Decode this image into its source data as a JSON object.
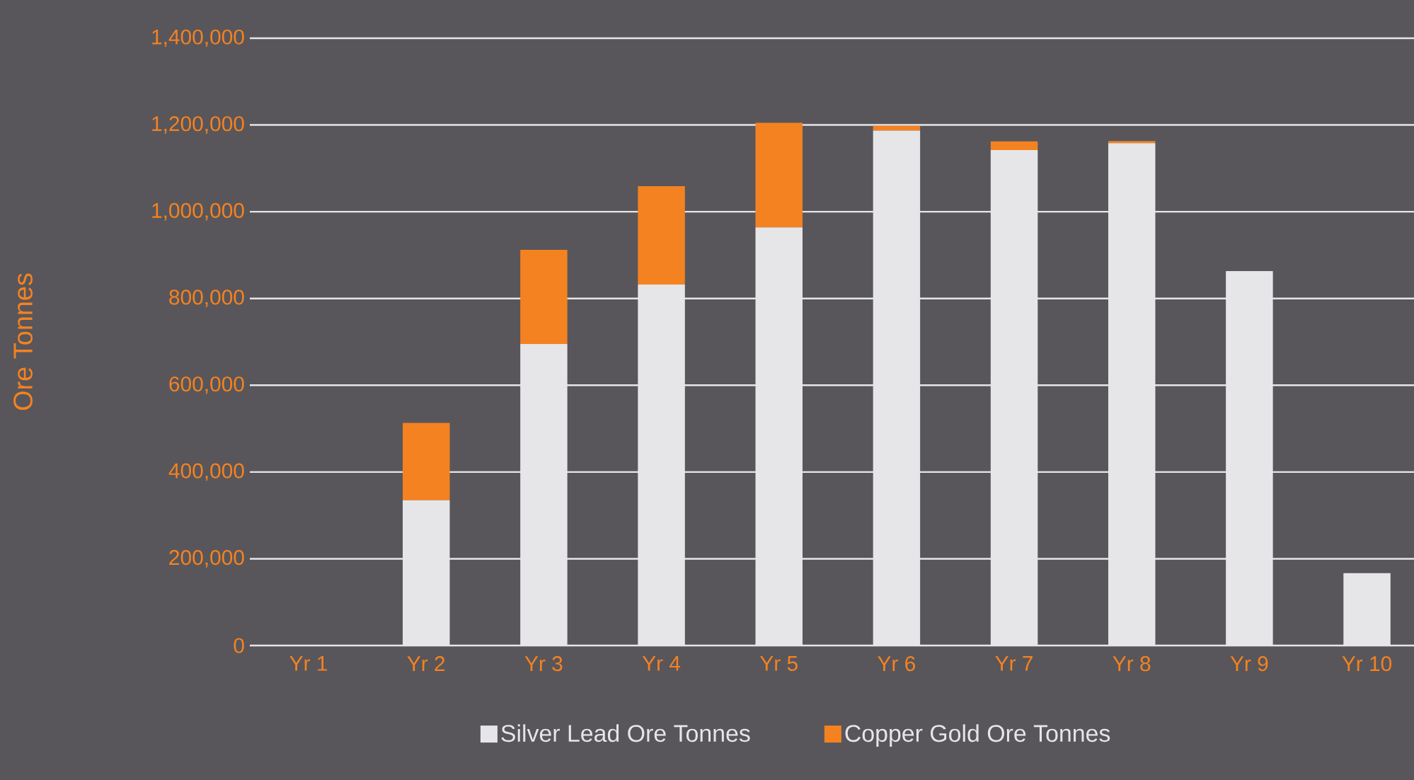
{
  "chart_data": {
    "type": "bar",
    "stacked": true,
    "ylabel": "Ore Tonnes",
    "categories": [
      "Yr 1",
      "Yr 2",
      "Yr 3",
      "Yr 4",
      "Yr 5",
      "Yr 6",
      "Yr 7",
      "Yr 8",
      "Yr 9",
      "Yr 10"
    ],
    "series": [
      {
        "name": "Silver Lead Ore Tonnes",
        "color": "#e6e6e8",
        "values": [
          0,
          335000,
          695000,
          832000,
          964000,
          1187000,
          1142000,
          1158000,
          863000,
          167000
        ]
      },
      {
        "name": "Copper Gold Ore Tonnes",
        "color": "#f58220",
        "values": [
          0,
          178000,
          217000,
          227000,
          241000,
          11000,
          20000,
          5000,
          0,
          0
        ]
      }
    ],
    "ylim": [
      0,
      1400000
    ],
    "yticks": [
      {
        "value": 0,
        "label": "0"
      },
      {
        "value": 200000,
        "label": "200,000"
      },
      {
        "value": 400000,
        "label": "400,000"
      },
      {
        "value": 600000,
        "label": "600,000"
      },
      {
        "value": 800000,
        "label": "800,000"
      },
      {
        "value": 1000000,
        "label": "1,000,000"
      },
      {
        "value": 1200000,
        "label": "1,200,000"
      },
      {
        "value": 1400000,
        "label": "1,400,000"
      }
    ],
    "grid": "y",
    "legend": "bottom"
  }
}
